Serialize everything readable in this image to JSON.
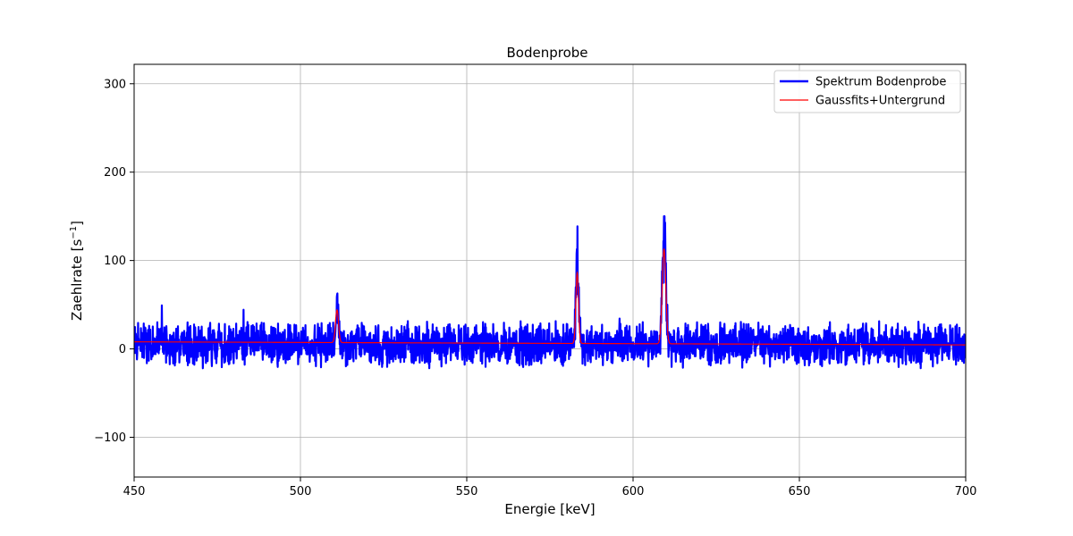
{
  "chart_data": {
    "type": "line",
    "title": "Bodenprobe",
    "xlabel": "Energie [keV]",
    "ylabel_base": "Zaehlrate [s",
    "ylabel_sup": "−1",
    "ylabel_end": "]",
    "xlim": [
      450,
      700
    ],
    "ylim": [
      -145,
      322
    ],
    "xticks": [
      450,
      500,
      550,
      600,
      650,
      700
    ],
    "yticks": [
      -100,
      0,
      100,
      200,
      300
    ],
    "ytick_labels": [
      "−100",
      "0",
      "100",
      "200",
      "300"
    ],
    "grid": true,
    "legend_position": "top-right",
    "series": [
      {
        "name": "Spektrum Bodenprobe",
        "color": "#0000ff",
        "style": "noisy-spectrum",
        "noise_range": [
          -18,
          32
        ],
        "peaks": [
          {
            "energy": 511,
            "height": 62
          },
          {
            "energy": 583.2,
            "height": 110
          },
          {
            "energy": 609.3,
            "height": 143
          }
        ]
      },
      {
        "name": "Gaussfits+Untergrund",
        "color": "#ff0000",
        "background": {
          "x": [
            450,
            700
          ],
          "y": [
            8,
            4.5
          ]
        },
        "peaks": [
          {
            "energy": 511,
            "amplitude": 37,
            "sigma": 0.45
          },
          {
            "energy": 583.2,
            "amplitude": 80,
            "sigma": 0.4
          },
          {
            "energy": 609.3,
            "amplitude": 107,
            "sigma": 0.55
          }
        ]
      }
    ]
  }
}
